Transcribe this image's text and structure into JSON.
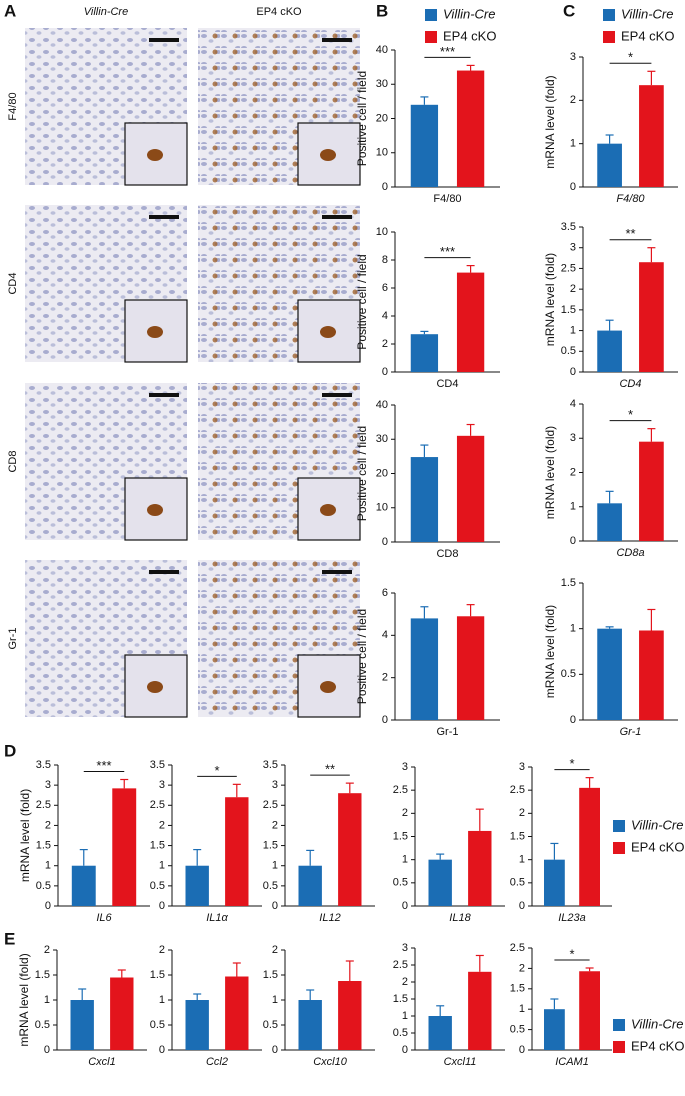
{
  "panels": {
    "A": "A",
    "B": "B",
    "C": "C",
    "D": "D",
    "E": "E"
  },
  "image_columns": [
    "Villin-Cre",
    "EP4 cKO"
  ],
  "image_rows": [
    "F4/80",
    "CD4",
    "CD8",
    "Gr-1"
  ],
  "groups": [
    {
      "name": "Villin-Cre",
      "color": "#1b6db4",
      "style": "italic"
    },
    {
      "name": "EP4 cKO",
      "color": "#e3141c",
      "style": "normal"
    }
  ],
  "chart_data": [
    {
      "type": "bar",
      "ylabel": "Positive cell / field",
      "xlabel": "F4/80",
      "values": [
        24,
        34
      ],
      "errors": [
        2.3,
        1.5
      ],
      "ylim": [
        0,
        40
      ],
      "yticks": [
        0,
        10,
        20,
        30,
        40
      ],
      "annotation": "***"
    },
    {
      "type": "bar",
      "ylabel": "Positive cell / field",
      "xlabel": "CD4",
      "values": [
        2.7,
        7.1
      ],
      "errors": [
        0.2,
        0.5
      ],
      "ylim": [
        0,
        10
      ],
      "yticks": [
        0,
        2,
        4,
        6,
        8,
        10
      ],
      "annotation": "***"
    },
    {
      "type": "bar",
      "ylabel": "Positive cell / field",
      "xlabel": "CD8",
      "values": [
        24.8,
        31
      ],
      "errors": [
        3.5,
        3.3
      ],
      "ylim": [
        0,
        40
      ],
      "yticks": [
        0,
        10,
        20,
        30,
        40
      ]
    },
    {
      "type": "bar",
      "ylabel": "Positive cell / field",
      "xlabel": "Gr-1",
      "values": [
        4.8,
        4.9
      ],
      "errors": [
        0.55,
        0.55
      ],
      "ylim": [
        0,
        6
      ],
      "yticks": [
        0,
        2,
        4,
        6
      ]
    },
    {
      "type": "bar",
      "ylabel": "mRNA level (fold)",
      "xlabel": "F4/80",
      "xlabel_style": "italic",
      "values": [
        1.0,
        2.35
      ],
      "errors": [
        0.2,
        0.32
      ],
      "ylim": [
        0,
        3
      ],
      "yticks": [
        0,
        1,
        2,
        3
      ],
      "annotation": "*"
    },
    {
      "type": "bar",
      "ylabel": "mRNA level (fold)",
      "xlabel": "CD4",
      "xlabel_style": "italic",
      "values": [
        1.0,
        2.65
      ],
      "errors": [
        0.25,
        0.35
      ],
      "ylim": [
        0,
        3.5
      ],
      "yticks": [
        0,
        0.5,
        1,
        1.5,
        2,
        2.5,
        3,
        3.5
      ],
      "annotation": "**"
    },
    {
      "type": "bar",
      "ylabel": "mRNA level (fold)",
      "xlabel": "CD8a",
      "xlabel_style": "italic",
      "values": [
        1.1,
        2.9
      ],
      "errors": [
        0.35,
        0.38
      ],
      "ylim": [
        0,
        4
      ],
      "yticks": [
        0,
        1,
        2,
        3,
        4
      ],
      "annotation": "*"
    },
    {
      "type": "bar",
      "ylabel": "mRNA level (fold)",
      "xlabel": "Gr-1",
      "xlabel_style": "italic",
      "values": [
        1.0,
        0.98
      ],
      "errors": [
        0.02,
        0.23
      ],
      "ylim": [
        0,
        1.5
      ],
      "yticks": [
        0,
        0.5,
        1,
        1.5
      ]
    },
    {
      "type": "bar",
      "ylabel": "mRNA level (fold)",
      "xlabel": "IL6",
      "xlabel_style": "italic",
      "values": [
        1.0,
        2.92
      ],
      "errors": [
        0.4,
        0.22
      ],
      "ylim": [
        0,
        3.5
      ],
      "yticks": [
        0,
        0.5,
        1,
        1.5,
        2,
        2.5,
        3,
        3.5
      ],
      "annotation": "***"
    },
    {
      "type": "bar",
      "xlabel": "IL1α",
      "xlabel_style": "italic",
      "values": [
        1.0,
        2.7
      ],
      "errors": [
        0.4,
        0.32
      ],
      "ylim": [
        0,
        3.5
      ],
      "yticks": [
        0,
        0.5,
        1,
        1.5,
        2,
        2.5,
        3,
        3.5
      ],
      "annotation": "*"
    },
    {
      "type": "bar",
      "xlabel": "IL12",
      "xlabel_style": "italic",
      "values": [
        1.0,
        2.8
      ],
      "errors": [
        0.38,
        0.25
      ],
      "ylim": [
        0,
        3.5
      ],
      "yticks": [
        0,
        0.5,
        1,
        1.5,
        2,
        2.5,
        3,
        3.5
      ],
      "annotation": "**"
    },
    {
      "type": "bar",
      "xlabel": "IL18",
      "xlabel_style": "italic",
      "values": [
        1.0,
        1.62
      ],
      "errors": [
        0.12,
        0.47
      ],
      "ylim": [
        0,
        3
      ],
      "yticks": [
        0,
        0.5,
        1,
        1.5,
        2,
        2.5,
        3
      ]
    },
    {
      "type": "bar",
      "xlabel": "IL23a",
      "xlabel_style": "italic",
      "values": [
        1.0,
        2.55
      ],
      "errors": [
        0.35,
        0.22
      ],
      "ylim": [
        0,
        3
      ],
      "yticks": [
        0,
        0.5,
        1,
        1.5,
        2,
        2.5,
        3
      ],
      "annotation": "*"
    },
    {
      "type": "bar",
      "ylabel": "mRNA level (fold)",
      "xlabel": "Cxcl1",
      "xlabel_style": "italic",
      "values": [
        1.0,
        1.45
      ],
      "errors": [
        0.22,
        0.15
      ],
      "ylim": [
        0,
        2
      ],
      "yticks": [
        0,
        0.5,
        1,
        1.5,
        2
      ]
    },
    {
      "type": "bar",
      "xlabel": "Ccl2",
      "xlabel_style": "italic",
      "values": [
        1.0,
        1.47
      ],
      "errors": [
        0.12,
        0.27
      ],
      "ylim": [
        0,
        2
      ],
      "yticks": [
        0,
        0.5,
        1,
        1.5,
        2
      ]
    },
    {
      "type": "bar",
      "xlabel": "Cxcl10",
      "xlabel_style": "italic",
      "values": [
        1.0,
        1.38
      ],
      "errors": [
        0.2,
        0.4
      ],
      "ylim": [
        0,
        2
      ],
      "yticks": [
        0,
        0.5,
        1,
        1.5,
        2
      ]
    },
    {
      "type": "bar",
      "xlabel": "Cxcl11",
      "xlabel_style": "italic",
      "values": [
        1.0,
        2.3
      ],
      "errors": [
        0.3,
        0.48
      ],
      "ylim": [
        0,
        3
      ],
      "yticks": [
        0,
        0.5,
        1,
        1.5,
        2,
        2.5,
        3
      ]
    },
    {
      "type": "bar",
      "xlabel": "ICAM1",
      "xlabel_style": "italic",
      "values": [
        1.0,
        1.93
      ],
      "errors": [
        0.25,
        0.08
      ],
      "ylim": [
        0,
        2.5
      ],
      "yticks": [
        0,
        0.5,
        1,
        1.5,
        2,
        2.5
      ],
      "annotation": "*"
    }
  ]
}
